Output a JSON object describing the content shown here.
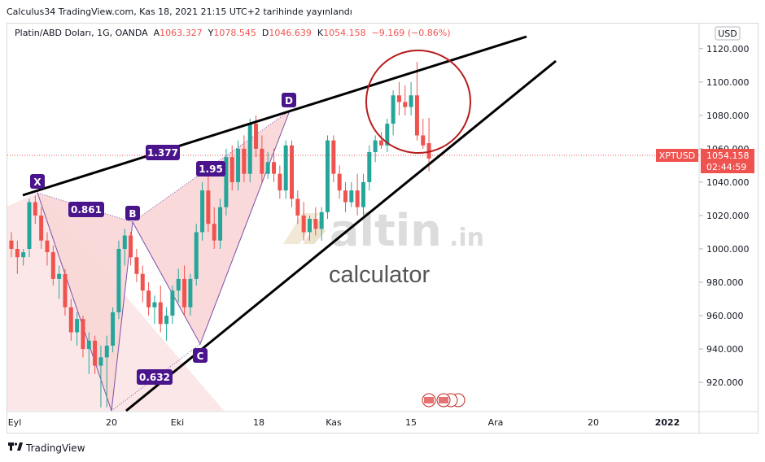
{
  "header": {
    "publish_line": "Calculus34 TradingView.com, Kas 18, 2021 21:15 UTC+2 tarihinde yayınlandı"
  },
  "legend": {
    "symbol": "Platin/ABD Doları, 1G, OANDA",
    "o_label": "A",
    "o_value": "1063.327",
    "h_label": "Y",
    "h_value": "1078.545",
    "l_label": "D",
    "l_value": "1046.639",
    "c_label": "K",
    "c_value": "1054.158",
    "change": "−9.169 (−0.86%)"
  },
  "currency": "USD",
  "price_tag": {
    "symbol": "XPTUSD",
    "price": "1054.158",
    "countdown": "02:44:59",
    "color": "#ef5350"
  },
  "watermark": {
    "brand_main": "altin",
    "brand_suffix": ".in",
    "subtitle": "calculator"
  },
  "pattern_points": [
    "X",
    "B",
    "C",
    "D"
  ],
  "ratios": [
    "0.861",
    "1.377",
    "0.632",
    "1.95"
  ],
  "footer": {
    "brand": "TradingView"
  },
  "colors": {
    "up": "#26a69a",
    "down": "#ef5350",
    "pattern_fill": "#f4b9b9",
    "pattern_label": "#4a148c",
    "circle": "#b71c1c"
  },
  "chart_data": {
    "type": "candlestick",
    "y_ticks": [
      "1120.000",
      "1100.000",
      "1080.000",
      "1060.000",
      "1040.000",
      "1020.000",
      "1000.000",
      "980.000",
      "960.000",
      "940.000",
      "920.000"
    ],
    "ylim": [
      903,
      1135
    ],
    "x_ticks": [
      "Eyl",
      "20",
      "Eki",
      "18",
      "Kas",
      "15",
      "Ara",
      "20",
      "2022"
    ],
    "candles": [
      [
        0,
        1005,
        1010,
        995,
        1000
      ],
      [
        1,
        1000,
        1005,
        985,
        995
      ],
      [
        2,
        995,
        1000,
        990,
        998
      ],
      [
        3,
        1000,
        1030,
        995,
        1028
      ],
      [
        4,
        1028,
        1032,
        1015,
        1020
      ],
      [
        5,
        1020,
        1025,
        1000,
        1005
      ],
      [
        6,
        1005,
        1010,
        990,
        998
      ],
      [
        7,
        998,
        1002,
        978,
        982
      ],
      [
        8,
        982,
        990,
        970,
        985
      ],
      [
        9,
        985,
        988,
        960,
        965
      ],
      [
        10,
        965,
        970,
        945,
        950
      ],
      [
        11,
        950,
        962,
        942,
        958
      ],
      [
        12,
        958,
        960,
        935,
        940
      ],
      [
        13,
        940,
        950,
        925,
        945
      ],
      [
        14,
        945,
        948,
        925,
        930
      ],
      [
        15,
        930,
        942,
        905,
        935
      ],
      [
        16,
        935,
        948,
        905,
        942
      ],
      [
        17,
        942,
        965,
        938,
        962
      ],
      [
        18,
        962,
        1005,
        958,
        1000
      ],
      [
        19,
        1000,
        1012,
        990,
        1008
      ],
      [
        20,
        1008,
        1010,
        990,
        995
      ],
      [
        21,
        995,
        1000,
        980,
        985
      ],
      [
        22,
        985,
        990,
        968,
        975
      ],
      [
        23,
        975,
        980,
        960,
        965
      ],
      [
        24,
        965,
        972,
        955,
        968
      ],
      [
        25,
        968,
        978,
        950,
        955
      ],
      [
        26,
        955,
        965,
        945,
        960
      ],
      [
        27,
        960,
        978,
        955,
        975
      ],
      [
        28,
        975,
        988,
        968,
        982
      ],
      [
        29,
        982,
        990,
        960,
        965
      ],
      [
        30,
        965,
        985,
        960,
        982
      ],
      [
        31,
        982,
        1015,
        978,
        1010
      ],
      [
        32,
        1010,
        1040,
        1005,
        1035
      ],
      [
        33,
        1035,
        1045,
        1010,
        1015
      ],
      [
        34,
        1015,
        1025,
        1000,
        1005
      ],
      [
        35,
        1005,
        1030,
        1000,
        1025
      ],
      [
        36,
        1025,
        1060,
        1020,
        1055
      ],
      [
        37,
        1055,
        1062,
        1035,
        1040
      ],
      [
        38,
        1040,
        1065,
        1035,
        1060
      ],
      [
        39,
        1060,
        1068,
        1040,
        1045
      ],
      [
        40,
        1045,
        1078,
        1040,
        1075
      ],
      [
        41,
        1075,
        1080,
        1055,
        1060
      ],
      [
        42,
        1060,
        1068,
        1040,
        1045
      ],
      [
        43,
        1045,
        1058,
        1042,
        1052
      ],
      [
        44,
        1052,
        1060,
        1040,
        1045
      ],
      [
        45,
        1045,
        1050,
        1030,
        1035
      ],
      [
        46,
        1035,
        1065,
        1030,
        1062
      ],
      [
        47,
        1062,
        1065,
        1025,
        1030
      ],
      [
        48,
        1030,
        1035,
        1015,
        1020
      ],
      [
        49,
        1020,
        1028,
        1005,
        1010
      ],
      [
        50,
        1010,
        1020,
        1005,
        1018
      ],
      [
        51,
        1018,
        1025,
        1008,
        1012
      ],
      [
        52,
        1012,
        1025,
        1005,
        1022
      ],
      [
        53,
        1022,
        1068,
        1018,
        1065
      ],
      [
        54,
        1065,
        1068,
        1040,
        1045
      ],
      [
        55,
        1045,
        1050,
        1030,
        1035
      ],
      [
        56,
        1035,
        1040,
        1022,
        1028
      ],
      [
        57,
        1028,
        1040,
        1025,
        1035
      ],
      [
        58,
        1035,
        1045,
        1020,
        1025
      ],
      [
        59,
        1025,
        1045,
        1020,
        1040
      ],
      [
        60,
        1040,
        1062,
        1035,
        1058
      ],
      [
        61,
        1058,
        1068,
        1052,
        1065
      ],
      [
        62,
        1065,
        1070,
        1060,
        1062
      ],
      [
        63,
        1062,
        1078,
        1058,
        1075
      ],
      [
        64,
        1075,
        1095,
        1068,
        1092
      ],
      [
        65,
        1092,
        1100,
        1080,
        1088
      ],
      [
        66,
        1088,
        1098,
        1080,
        1085
      ],
      [
        67,
        1085,
        1100,
        1080,
        1092
      ],
      [
        68,
        1092,
        1112,
        1065,
        1068
      ],
      [
        69,
        1068,
        1078,
        1060,
        1062
      ],
      [
        70,
        1063.327,
        1078.545,
        1046.639,
        1054.158
      ]
    ]
  }
}
